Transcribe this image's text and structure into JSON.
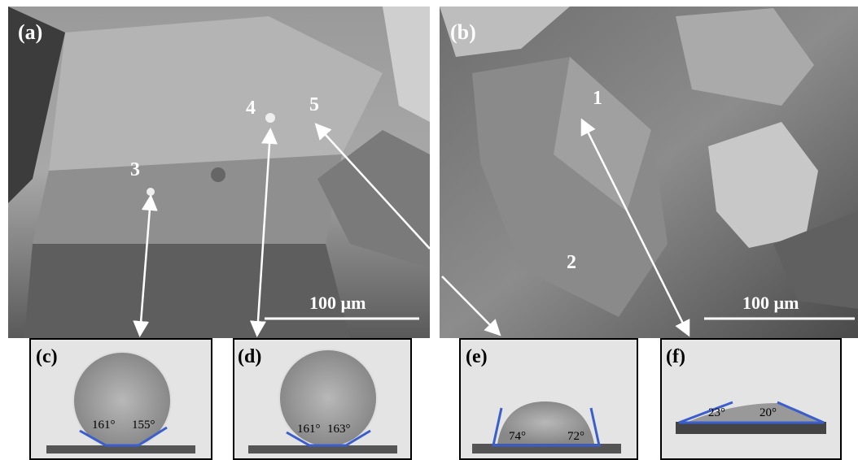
{
  "panels": [
    {
      "label": "(a)",
      "scale_bar": "100 µm",
      "markers": [
        "3",
        "4",
        "5"
      ]
    },
    {
      "label": "(b)",
      "scale_bar": "100 µm",
      "markers": [
        "1",
        "2"
      ]
    }
  ],
  "insets": [
    {
      "label": "(c)",
      "angles": [
        "161°",
        "155°"
      ]
    },
    {
      "label": "(d)",
      "angles": [
        "161°",
        "163°"
      ]
    },
    {
      "label": "(e)",
      "angles": [
        "74°",
        "72°"
      ]
    },
    {
      "label": "(f)",
      "angles": [
        "23°",
        "20°"
      ]
    }
  ]
}
